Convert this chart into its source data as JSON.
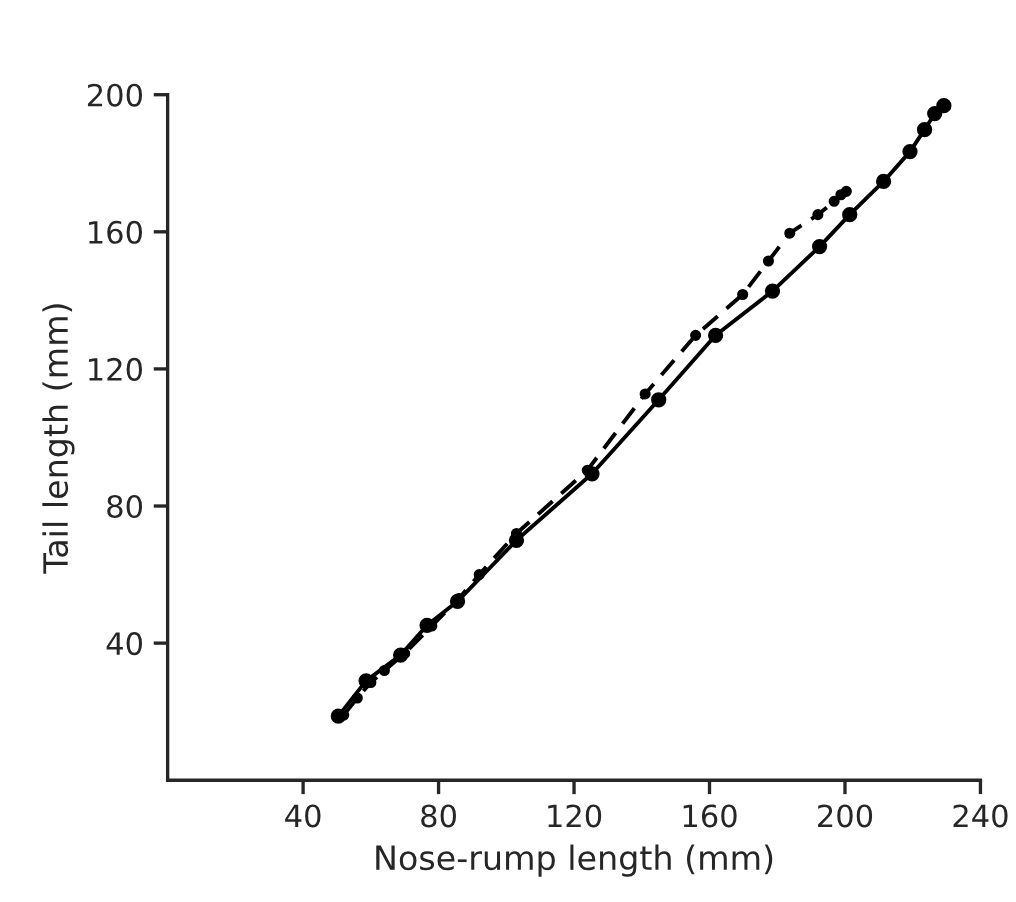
{
  "chart_data": {
    "type": "line",
    "xlabel": "Nose-rump length (mm)",
    "ylabel": "Tail length (mm)",
    "xlim": [
      0,
      240
    ],
    "ylim": [
      0,
      200
    ],
    "xticks": [
      40,
      80,
      120,
      160,
      200,
      240
    ],
    "yticks": [
      40,
      80,
      120,
      160,
      200
    ],
    "grid": false,
    "legend": false,
    "marker": "circle",
    "series": [
      {
        "color": "#000000",
        "line_style": "solid",
        "x": [
          50.4,
          58.6,
          68.8,
          76.6,
          85.6,
          103,
          125.3,
          145,
          161.8,
          178.6,
          192.5,
          201.4,
          211.4,
          219.2,
          223.5,
          226.5,
          229.2
        ],
        "values": [
          18.7,
          29,
          36.5,
          45.2,
          52.2,
          70,
          89.4,
          111,
          129.8,
          142.7,
          155.7,
          165,
          174.7,
          183.4,
          189.8,
          194.5,
          196.8
        ]
      },
      {
        "color": "#000000",
        "line_style": "dashed",
        "x": [
          52,
          56,
          60,
          64,
          70,
          78,
          86,
          92,
          103,
          123.9,
          141,
          155.9,
          169.8,
          177.4,
          183.7,
          192,
          196.8,
          198.8,
          200.4
        ],
        "values": [
          19,
          24,
          28.5,
          32,
          37,
          45,
          53,
          60,
          72,
          90.4,
          112.7,
          129.8,
          141.7,
          151.5,
          159.6,
          165,
          168.9,
          170.8,
          171.8
        ]
      }
    ]
  }
}
